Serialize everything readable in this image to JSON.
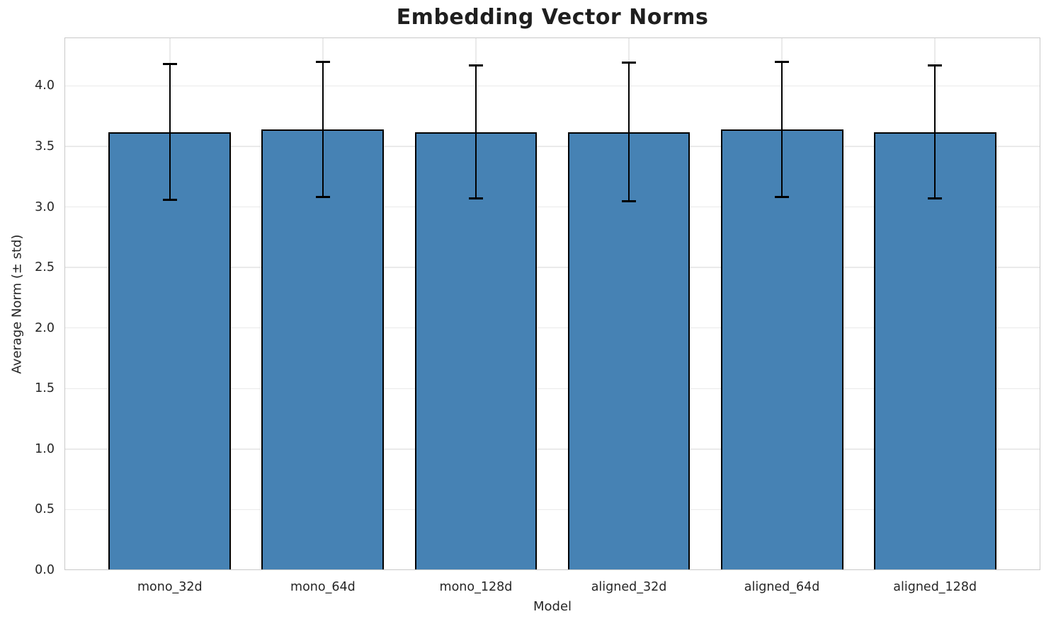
{
  "chart_data": {
    "type": "bar",
    "title": "Embedding Vector Norms",
    "xlabel": "Model",
    "ylabel": "Average Norm (± std)",
    "categories": [
      "mono_32d",
      "mono_64d",
      "mono_128d",
      "aligned_32d",
      "aligned_64d",
      "aligned_128d"
    ],
    "series": [
      {
        "name": "Average Norm",
        "values": [
          3.62,
          3.64,
          3.62,
          3.62,
          3.64,
          3.62
        ],
        "errors": [
          0.56,
          0.56,
          0.55,
          0.57,
          0.56,
          0.55
        ]
      }
    ],
    "error_bar_tops": [
      4.18,
      4.2,
      4.17,
      4.19,
      4.2,
      4.17
    ],
    "error_bar_bottoms": [
      3.06,
      3.08,
      3.07,
      3.05,
      3.08,
      3.07
    ],
    "ylim": [
      0,
      4.4
    ],
    "yticks": [
      0.0,
      0.5,
      1.0,
      1.5,
      2.0,
      2.5,
      3.0,
      3.5,
      4.0
    ],
    "grid": "on",
    "legend": "none",
    "colors": {
      "bar_fill": "#4682b4",
      "bar_edge": "#000000",
      "error_bar": "#000000",
      "grid": "#eaeaea",
      "spine": "#c9c9c9",
      "text": "#262626",
      "title_text": "#1f1f1f",
      "background": "#ffffff"
    }
  }
}
